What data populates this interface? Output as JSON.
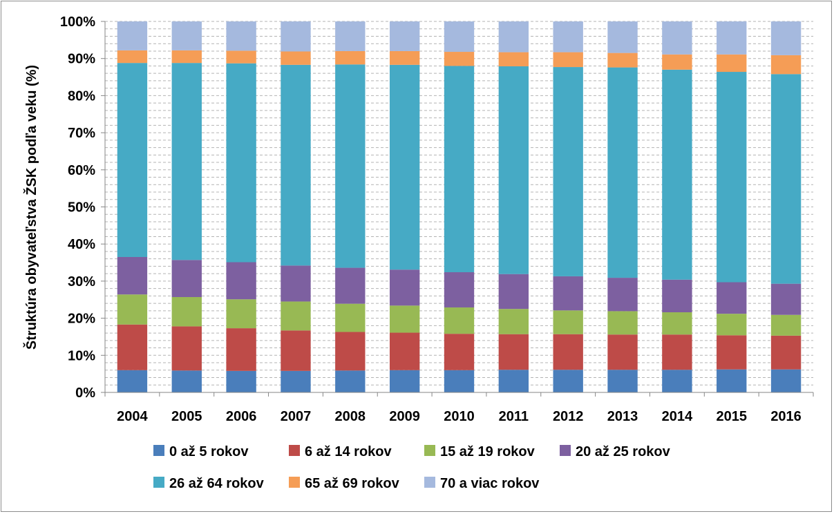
{
  "chart_data": {
    "type": "bar",
    "stacked": true,
    "percent": true,
    "ylabel": "Štruktúra obyvateľstva ŽSK podľa veku (%)",
    "xlabel": "",
    "ylim": [
      0,
      100
    ],
    "yticks": [
      "0%",
      "10%",
      "20%",
      "30%",
      "40%",
      "50%",
      "60%",
      "70%",
      "80%",
      "90%",
      "100%"
    ],
    "categories": [
      "2004",
      "2005",
      "2006",
      "2007",
      "2008",
      "2009",
      "2010",
      "2011",
      "2012",
      "2013",
      "2014",
      "2015",
      "2016"
    ],
    "grid": true,
    "legend_position": "bottom",
    "series": [
      {
        "name": "0 až 5 rokov",
        "color": "#4a7ebb",
        "values": [
          6.0,
          5.9,
          5.8,
          5.8,
          5.9,
          6.0,
          6.0,
          6.1,
          6.1,
          6.1,
          6.1,
          6.2,
          6.2
        ]
      },
      {
        "name": "6 až 14 rokov",
        "color": "#be4b48",
        "values": [
          12.3,
          11.9,
          11.5,
          10.9,
          10.4,
          10.1,
          9.8,
          9.6,
          9.6,
          9.5,
          9.5,
          9.2,
          9.1
        ]
      },
      {
        "name": "15 až 19 rokov",
        "color": "#98b954",
        "values": [
          8.1,
          7.9,
          7.8,
          7.8,
          7.6,
          7.3,
          7.1,
          6.8,
          6.4,
          6.3,
          6.0,
          5.8,
          5.6
        ]
      },
      {
        "name": "20 až 25 rokov",
        "color": "#7d60a0",
        "values": [
          10.1,
          10.0,
          10.0,
          9.7,
          9.7,
          9.7,
          9.5,
          9.4,
          9.2,
          9.0,
          8.8,
          8.5,
          8.4
        ]
      },
      {
        "name": "26 až 64 rokov",
        "color": "#46aac5",
        "values": [
          52.3,
          53.1,
          53.6,
          54.1,
          54.8,
          55.2,
          55.6,
          56.0,
          56.4,
          56.7,
          56.6,
          56.7,
          56.5
        ]
      },
      {
        "name": "65 až 69 rokov",
        "color": "#f59d56",
        "values": [
          3.4,
          3.4,
          3.4,
          3.6,
          3.6,
          3.7,
          3.8,
          3.8,
          4.0,
          3.9,
          4.1,
          4.7,
          5.1
        ]
      },
      {
        "name": "70 a viac rokov",
        "color": "#a5b9de",
        "values": [
          7.8,
          7.8,
          7.9,
          8.1,
          8.0,
          8.0,
          8.2,
          8.3,
          8.3,
          8.5,
          8.9,
          8.9,
          9.1
        ]
      }
    ]
  }
}
